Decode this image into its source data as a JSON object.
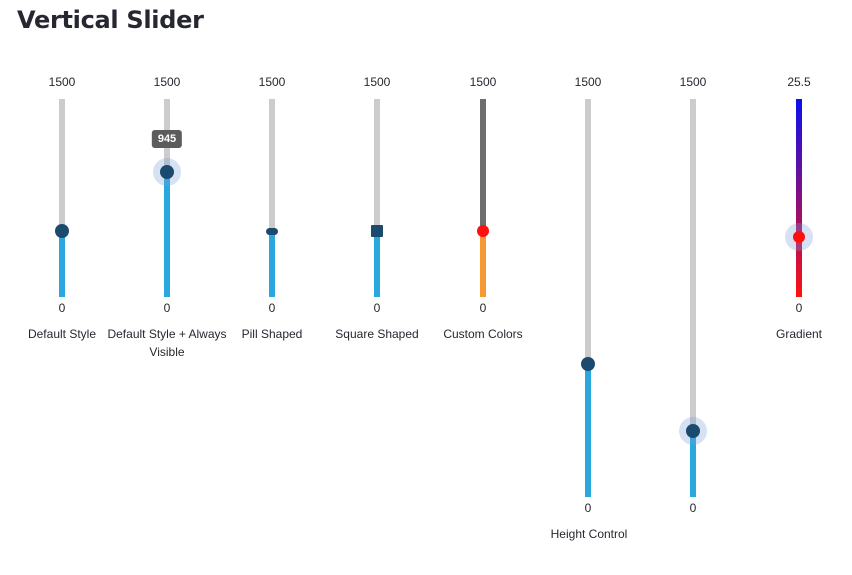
{
  "title": "Vertical Slider",
  "sliders": [
    {
      "caption": "Default Style",
      "max": "1500",
      "min": "0",
      "value": 500,
      "value_text": "500",
      "max_value": 1500
    },
    {
      "caption": "Default Style + Always Visible",
      "max": "1500",
      "min": "0",
      "value": 945,
      "value_text": "945",
      "max_value": 1500
    },
    {
      "caption": "Pill Shaped",
      "max": "1500",
      "min": "0",
      "value": 500,
      "value_text": "500",
      "max_value": 1500
    },
    {
      "caption": "Square Shaped",
      "max": "1500",
      "min": "0",
      "value": 500,
      "value_text": "500",
      "max_value": 1500
    },
    {
      "caption": "Custom Colors",
      "max": "1500",
      "min": "0",
      "value": 500,
      "value_text": "500",
      "max_value": 1500
    },
    {
      "max": "1500",
      "min": "0",
      "value": 500,
      "value_text": "500",
      "max_value": 1500
    },
    {
      "max": "1500",
      "min": "0",
      "value": 250,
      "value_text": "250",
      "max_value": 1500
    },
    {
      "caption": "Gradient",
      "max": "25.5",
      "min": "0",
      "value": 7.7,
      "value_text": "7.7",
      "max_value": 25.5
    }
  ],
  "height_control_caption": "Height Control",
  "colors": {
    "track": "#cccccc",
    "fill": "#29a8e0",
    "handle": "#1a4a6e",
    "custom_track": "#6d6d6d",
    "custom_fill": "#f59a32",
    "custom_handle": "#ff1010",
    "gradient_top": "#0a10ee",
    "gradient_bottom": "#ff1010"
  }
}
